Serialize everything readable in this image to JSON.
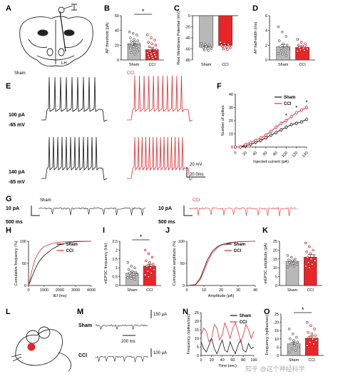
{
  "colors": {
    "sham": "#111111",
    "cci": "#e8262a",
    "sham_bar": "#b8b8b8",
    "cci_bar": "#e8262a"
  },
  "panel_letters": [
    "A",
    "B",
    "C",
    "D",
    "E",
    "F",
    "G",
    "H",
    "I",
    "J",
    "K",
    "L",
    "M",
    "N",
    "O"
  ],
  "panelA": {
    "label": "LH"
  },
  "panelE": {
    "sham_title": "Sham",
    "cci_title": "CCI",
    "cond1_current": "100 pA",
    "cond1_voltage": "-65 mV",
    "cond2_current": "140 pA",
    "cond2_voltage": "-65 mV",
    "scale_v": "20 mV",
    "scale_t": "20 0ms"
  },
  "panelG": {
    "sham_title": "Sham",
    "cci_title": "CCI",
    "scale_i": "10 pA",
    "scale_t": "500 ms"
  },
  "panelM": {
    "sham_label": "Sham",
    "cci_label": "CCI",
    "scale1": "150 μA",
    "scale2": "100 μA",
    "scale_t": "200 ms"
  },
  "watermark": "知乎 @这个神经科学",
  "chart_data": [
    {
      "id": "B",
      "type": "bar",
      "ylabel": "AP threshold (pA)",
      "categories": [
        "Sham",
        "CCI"
      ],
      "values": [
        22,
        14
      ],
      "errors": [
        3,
        2.5
      ],
      "ylim": [
        0,
        60
      ],
      "yticks": [
        0,
        20,
        40,
        60
      ],
      "significance": "*",
      "points": [
        [
          38,
          36,
          34,
          30,
          28,
          26,
          25,
          24,
          22,
          21,
          20,
          20,
          18,
          17,
          16,
          14,
          12,
          10,
          8
        ],
        [
          34,
          30,
          27,
          24,
          22,
          20,
          18,
          16,
          14,
          12,
          10,
          10,
          8,
          7,
          6,
          5,
          4,
          3,
          2
        ]
      ]
    },
    {
      "id": "C",
      "type": "bar",
      "ylabel": "Rest Membrane Potential (mV)",
      "categories": [
        "Sham",
        "CCI"
      ],
      "values": [
        -57,
        -54
      ],
      "errors": [
        2,
        2
      ],
      "ylim": [
        -80,
        0
      ],
      "yticks": [
        0,
        -20,
        -40,
        -60,
        -80
      ],
      "points": [
        [
          -50,
          -52,
          -53,
          -55,
          -56,
          -57,
          -58,
          -59,
          -60,
          -62,
          -63
        ],
        [
          -48,
          -50,
          -52,
          -53,
          -54,
          -55,
          -56,
          -57,
          -58,
          -60,
          -61
        ]
      ]
    },
    {
      "id": "D",
      "type": "bar",
      "ylabel": "AP half-width (ms)",
      "categories": [
        "Sham",
        "CCI"
      ],
      "values": [
        1.8,
        1.7
      ],
      "errors": [
        0.3,
        0.2
      ],
      "ylim": [
        0,
        6
      ],
      "yticks": [
        0,
        2,
        4,
        6
      ],
      "points": [
        [
          4.5,
          3.8,
          3.2,
          2.6,
          2.2,
          2.0,
          1.8,
          1.6,
          1.5,
          1.3,
          1.1,
          0.9,
          0.8,
          0.6
        ],
        [
          2.8,
          2.4,
          2.2,
          2.0,
          1.9,
          1.8,
          1.7,
          1.6,
          1.5,
          1.4,
          1.3,
          1.2
        ]
      ]
    },
    {
      "id": "F",
      "type": "line",
      "xlabel": "Injected current (pA)",
      "ylabel": "Number of spikes",
      "x": [
        0,
        10,
        20,
        30,
        40,
        50,
        60,
        70,
        80,
        90,
        100,
        110,
        120,
        130,
        140
      ],
      "xticks": [
        0,
        20,
        40,
        60,
        80,
        100,
        120,
        140
      ],
      "ylim": [
        0,
        40
      ],
      "yticks": [
        0,
        10,
        20,
        30,
        40
      ],
      "legend": "top-right",
      "series": [
        {
          "name": "Sham",
          "values": [
            0,
            0,
            1,
            2,
            3.5,
            5,
            7,
            9,
            11,
            13,
            15,
            17,
            18,
            19,
            21
          ]
        },
        {
          "name": "CCI",
          "values": [
            0,
            0,
            2,
            3.5,
            5,
            7,
            9,
            12,
            15,
            18,
            20,
            23,
            26,
            28,
            30
          ]
        }
      ],
      "significance_marks": [
        "*",
        "*",
        "*"
      ]
    },
    {
      "id": "H",
      "type": "line",
      "xlabel": "IEI (ms)",
      "ylabel": "Cumulative frequency (%)",
      "x": [
        0,
        100,
        200,
        400,
        600,
        800,
        1000,
        1500,
        2000,
        2500,
        3000,
        4000
      ],
      "xticks": [
        0,
        1000,
        2000,
        3000,
        4000
      ],
      "ylim": [
        0,
        100
      ],
      "yticks": [
        0,
        50,
        100
      ],
      "legend": "top-right",
      "series": [
        {
          "name": "Sham",
          "values": [
            0,
            8,
            18,
            35,
            50,
            60,
            68,
            82,
            92,
            97,
            99,
            100
          ]
        },
        {
          "name": "CCI",
          "values": [
            0,
            15,
            32,
            58,
            72,
            82,
            88,
            95,
            98,
            99,
            100,
            100
          ]
        }
      ]
    },
    {
      "id": "I",
      "type": "bar",
      "ylabel": "mEPSC frequency (Hz)",
      "categories": [
        "Sham",
        "CCI"
      ],
      "values": [
        0.7,
        1.1
      ],
      "errors": [
        0.08,
        0.1
      ],
      "ylim": [
        0,
        2.5
      ],
      "yticks": [
        0,
        0.5,
        1.0,
        1.5,
        2.0,
        2.5
      ],
      "significance": "*",
      "points": [
        [
          1.3,
          1.1,
          1.0,
          0.9,
          0.8,
          0.75,
          0.7,
          0.65,
          0.6,
          0.55,
          0.5,
          0.45,
          0.4,
          0.35
        ],
        [
          2.0,
          1.8,
          1.6,
          1.4,
          1.3,
          1.2,
          1.1,
          1.0,
          0.9,
          0.8,
          0.7,
          0.6,
          0.5
        ]
      ]
    },
    {
      "id": "J",
      "type": "line",
      "xlabel": "Amplitude (pA)",
      "ylabel": "Cumulative amplitude (%)",
      "x": [
        0,
        5,
        8,
        10,
        12,
        15,
        18,
        20,
        25,
        30,
        40
      ],
      "xticks": [
        0,
        10,
        20,
        30,
        40
      ],
      "ylim": [
        0,
        100
      ],
      "yticks": [
        0,
        50,
        100
      ],
      "legend": "top-right",
      "series": [
        {
          "name": "Sham",
          "values": [
            0,
            2,
            18,
            38,
            58,
            78,
            88,
            92,
            97,
            99,
            100
          ]
        },
        {
          "name": "CCI",
          "values": [
            0,
            1,
            14,
            32,
            52,
            74,
            86,
            91,
            96,
            99,
            100
          ]
        }
      ]
    },
    {
      "id": "K",
      "type": "bar",
      "ylabel": "mEPSC amplitude (pA)",
      "categories": [
        "Sham",
        "CCI"
      ],
      "values": [
        13.5,
        16
      ],
      "errors": [
        0.8,
        1.5
      ],
      "ylim": [
        0,
        25
      ],
      "yticks": [
        0,
        5,
        10,
        15,
        20,
        25
      ],
      "points": [
        [
          17,
          16,
          15,
          14.5,
          14,
          13.5,
          13,
          12.5,
          12,
          11.5,
          11,
          10.5
        ],
        [
          24,
          22,
          20,
          19,
          18,
          17,
          16,
          15,
          14,
          13,
          12,
          11,
          10
        ]
      ]
    },
    {
      "id": "N",
      "type": "line",
      "xlabel": "Time (sec)",
      "ylabel": "Frequency (spikes/sec)",
      "x": [
        0,
        5,
        10,
        15,
        20,
        25,
        30,
        35,
        40,
        45,
        50,
        55,
        60,
        65,
        70,
        75,
        80,
        85,
        90,
        95,
        100
      ],
      "xticks": [
        0,
        20,
        40,
        60,
        80,
        100
      ],
      "ylim": [
        0,
        25
      ],
      "yticks": [
        0,
        5,
        10,
        15,
        20,
        25
      ],
      "legend": "top-right",
      "series": [
        {
          "name": "Sham",
          "values": [
            8,
            4,
            2,
            6,
            10,
            4,
            1,
            5,
            9,
            3,
            2,
            8,
            4,
            1,
            6,
            9,
            3,
            2,
            7,
            4,
            5
          ]
        },
        {
          "name": "CCI",
          "values": [
            12,
            16,
            14,
            8,
            10,
            18,
            16,
            9,
            12,
            19,
            15,
            10,
            16,
            19,
            14,
            8,
            12,
            18,
            15,
            10,
            14
          ]
        }
      ]
    },
    {
      "id": "O",
      "type": "bar",
      "ylabel": "Frequency (spikes/sec)",
      "categories": [
        "Sham",
        "CCI"
      ],
      "values": [
        7,
        10.5
      ],
      "errors": [
        1,
        1.2
      ],
      "ylim": [
        0,
        25
      ],
      "yticks": [
        0,
        5,
        10,
        15,
        20,
        25
      ],
      "significance": "*",
      "points": [
        [
          16,
          13,
          11,
          10,
          9,
          8,
          7,
          6,
          5,
          4,
          3,
          2
        ],
        [
          20,
          18,
          16,
          14,
          13,
          12,
          11,
          10,
          9,
          8,
          7,
          6
        ]
      ]
    }
  ]
}
